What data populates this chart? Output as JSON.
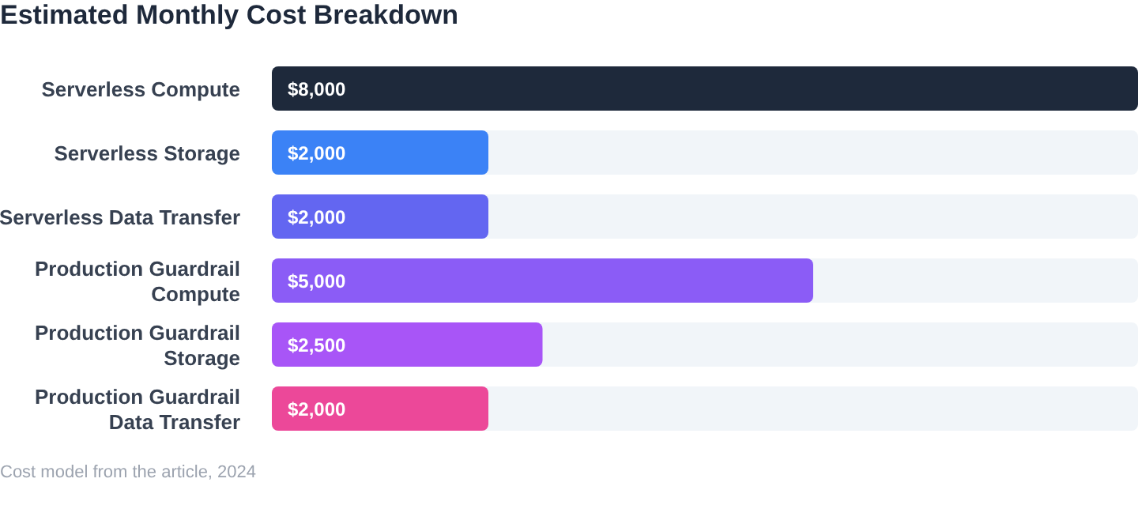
{
  "chart_data": {
    "type": "bar",
    "orientation": "horizontal",
    "title": "Estimated Monthly Cost Breakdown",
    "categories": [
      "Serverless Compute",
      "Serverless Storage",
      "Serverless Data Transfer",
      "Production Guardrail Compute",
      "Production Guardrail Storage",
      "Production Guardrail Data Transfer"
    ],
    "values": [
      8000,
      2000,
      2000,
      5000,
      2500,
      2000
    ],
    "value_labels": [
      "$8,000",
      "$2,000",
      "$2,000",
      "$5,000",
      "$2,500",
      "$2,000"
    ],
    "colors": [
      "#1e293b",
      "#3b82f6",
      "#6366f1",
      "#8b5cf6",
      "#a855f7",
      "#ec4899"
    ],
    "xlim": [
      0,
      8000
    ],
    "tick_labels": "y",
    "grid": false,
    "legend": false,
    "annotations": [
      "Cost model from the article, 2024"
    ]
  }
}
